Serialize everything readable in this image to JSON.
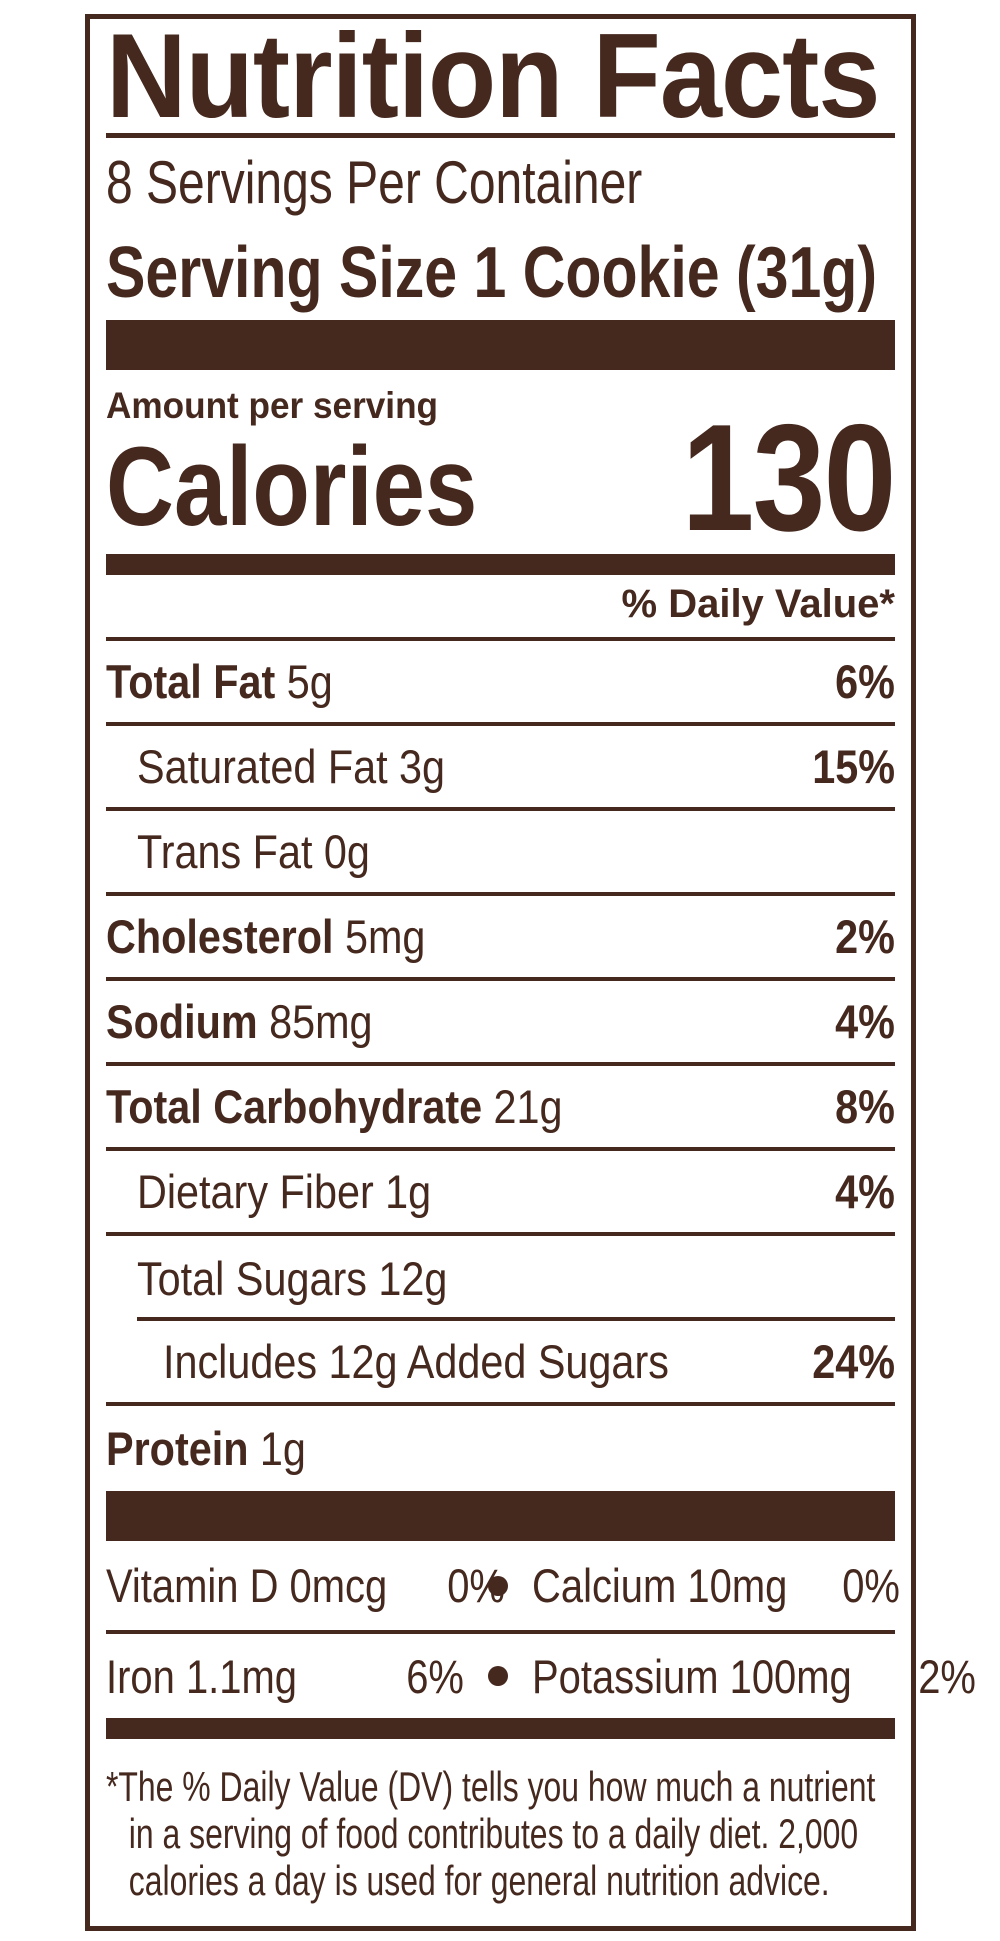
{
  "label": {
    "title": "Nutrition Facts",
    "servings_per_container": "8 Servings Per Container",
    "serving_size_label": "Serving Size",
    "serving_size_value": "1 Cookie (31g)",
    "amount_per_serving": "Amount per serving",
    "calories_label": "Calories",
    "calories_value": "130",
    "daily_value_header": "% Daily Value*",
    "nutrients": [
      {
        "name": "Total Fat",
        "amount": "5g",
        "dv": "6%",
        "bold": true,
        "indent": 0,
        "rule": "full"
      },
      {
        "name": "Saturated Fat",
        "amount": "3g",
        "dv": "15%",
        "bold": false,
        "indent": 1,
        "rule": "full"
      },
      {
        "name": "Trans Fat",
        "amount": "0g",
        "dv": "",
        "bold": false,
        "indent": 1,
        "rule": "full"
      },
      {
        "name": "Cholesterol",
        "amount": "5mg",
        "dv": "2%",
        "bold": true,
        "indent": 0,
        "rule": "full"
      },
      {
        "name": "Sodium",
        "amount": "85mg",
        "dv": "4%",
        "bold": true,
        "indent": 0,
        "rule": "full"
      },
      {
        "name": "Total Carbohydrate",
        "amount": "21g",
        "dv": "8%",
        "bold": true,
        "indent": 0,
        "rule": "full"
      },
      {
        "name": "Dietary Fiber",
        "amount": "1g",
        "dv": "4%",
        "bold": false,
        "indent": 1,
        "rule": "full"
      },
      {
        "name": "Total Sugars",
        "amount": "12g",
        "dv": "",
        "bold": false,
        "indent": 1,
        "rule": "indent"
      },
      {
        "name": "Includes 12g Added Sugars",
        "amount": "",
        "dv": "24%",
        "bold": false,
        "indent": 2,
        "rule": "full"
      },
      {
        "name": "Protein",
        "amount": "1g",
        "dv": "",
        "bold": true,
        "indent": 0,
        "rule": "none"
      }
    ],
    "vitamins": [
      {
        "left_name": "Vitamin D 0mcg",
        "left_dv": "0%",
        "right_name": "Calcium 10mg",
        "right_dv": "0%",
        "rule": "full"
      },
      {
        "left_name": "Iron 1.1mg",
        "left_dv": "6%",
        "right_name": "Potassium 100mg",
        "right_dv": "2%",
        "rule": "none"
      }
    ],
    "footnote_lines": [
      "*The % Daily Value (DV) tells you how much a nutrient",
      "in a serving of food contributes to a daily diet. 2,000",
      "calories a day is used for general nutrition advice."
    ],
    "colors": {
      "text_brown": "#45281e",
      "background": "#ffffff"
    }
  }
}
